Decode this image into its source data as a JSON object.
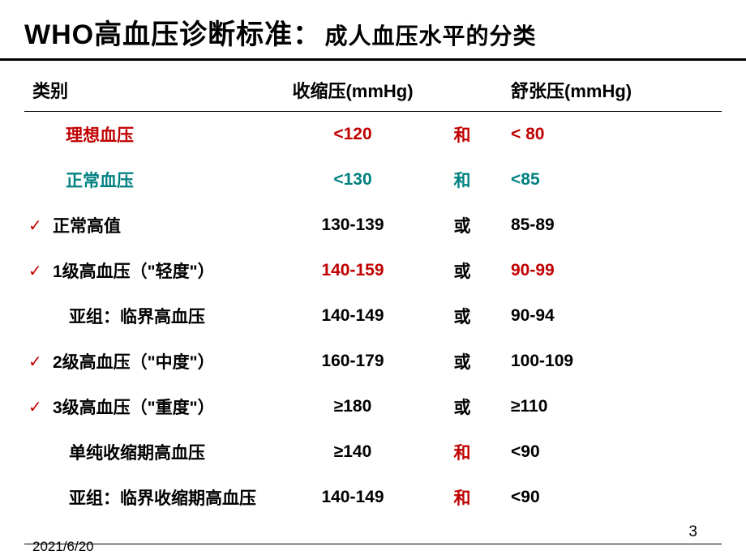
{
  "title": {
    "main": "WHO高血压诊断标准：",
    "sub": "成人血压水平的分类"
  },
  "headers": {
    "category": "类别",
    "systolic": "收缩压(mmHg)",
    "diastolic": "舒张压(mmHg)"
  },
  "rows": [
    {
      "check": false,
      "category": "理想血压",
      "categoryIndent": "indent2",
      "categoryColor": "color-red",
      "systolic": "<120",
      "systolicColor": "color-red",
      "conj": "和",
      "conjColor": "color-red",
      "diastolic": "< 80",
      "diastolicColor": "color-red"
    },
    {
      "check": false,
      "category": "正常血压",
      "categoryIndent": "indent2",
      "categoryColor": "color-teal",
      "systolic": "<130",
      "systolicColor": "color-teal",
      "conj": "和",
      "conjColor": "color-teal",
      "diastolic": "<85",
      "diastolicColor": "color-teal"
    },
    {
      "check": true,
      "category": "正常高值",
      "categoryIndent": "",
      "categoryColor": "color-black",
      "systolic": "130-139",
      "systolicColor": "color-black",
      "conj": "或",
      "conjColor": "color-black",
      "diastolic": "85-89",
      "diastolicColor": "color-black"
    },
    {
      "check": true,
      "category": "1级高血压（\"轻度\"）",
      "categoryIndent": "",
      "categoryColor": "color-black",
      "systolic": "140-159",
      "systolicColor": "color-red",
      "conj": "或",
      "conjColor": "color-black",
      "diastolic": "90-99",
      "diastolicColor": "color-red"
    },
    {
      "check": false,
      "category": "亚组：临界高血压",
      "categoryIndent": "indent",
      "categoryColor": "color-black",
      "systolic": "140-149",
      "systolicColor": "color-black",
      "conj": "或",
      "conjColor": "color-black",
      "diastolic": "90-94",
      "diastolicColor": "color-black"
    },
    {
      "check": true,
      "category": "2级高血压（\"中度\"）",
      "categoryIndent": "",
      "categoryColor": "color-black",
      "systolic": "160-179",
      "systolicColor": "color-black",
      "conj": "或",
      "conjColor": "color-black",
      "diastolic": "100-109",
      "diastolicColor": "color-black"
    },
    {
      "check": true,
      "category": "3级高血压（\"重度\"）",
      "categoryIndent": "",
      "categoryColor": "color-black",
      "systolic": "≥180",
      "systolicColor": "color-black",
      "conj": "或",
      "conjColor": "color-black",
      "diastolic": "≥110",
      "diastolicColor": "color-black"
    },
    {
      "check": false,
      "category": "单纯收缩期高血压",
      "categoryIndent": "indent",
      "categoryColor": "color-black",
      "systolic": "≥140",
      "systolicColor": "color-black",
      "conj": "和",
      "conjColor": "color-red",
      "diastolic": "<90",
      "diastolicColor": "color-black"
    },
    {
      "check": false,
      "category": "亚组：临界收缩期高血压",
      "categoryIndent": "indent",
      "categoryColor": "color-black",
      "systolic": "140-149",
      "systolicColor": "color-black",
      "conj": "和",
      "conjColor": "color-red",
      "diastolic": "<90",
      "diastolicColor": "color-black"
    }
  ],
  "footer": {
    "date": "2021/6/20",
    "pageNum": "3"
  },
  "checkSymbol": "✓"
}
